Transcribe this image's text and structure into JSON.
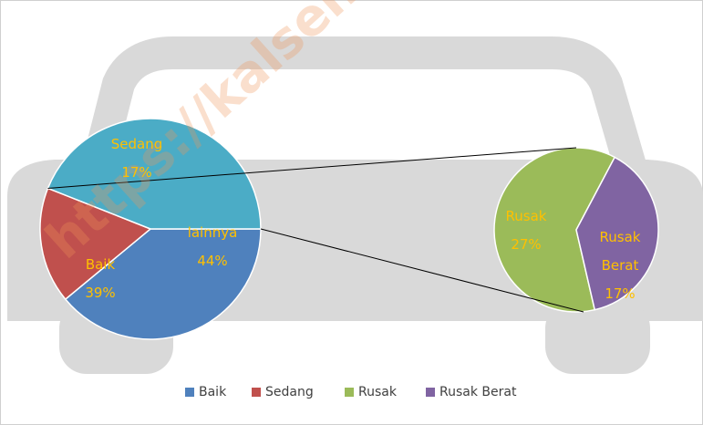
{
  "chart_data": {
    "type": "pie-of-pie",
    "main": {
      "categories": [
        "Baik",
        "Sedang",
        "lainnya"
      ],
      "values": [
        39,
        17,
        44
      ],
      "value_labels": [
        "39%",
        "17%",
        "44%"
      ],
      "colors": [
        "#4f81bd",
        "#c0504d",
        "#4bacc6"
      ]
    },
    "secondary": {
      "categories": [
        "Rusak",
        "Rusak Berat"
      ],
      "values": [
        27,
        17
      ],
      "value_labels": [
        "27%",
        "17%"
      ],
      "colors": [
        "#9bbb59",
        "#8064a2"
      ]
    },
    "watermark": "https://kalsel.bps.go.id"
  }
}
